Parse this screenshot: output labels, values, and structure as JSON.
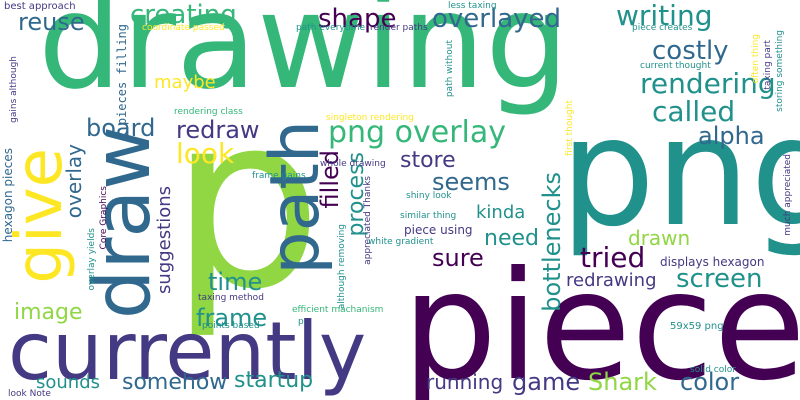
{
  "palette": {
    "background": "#ffffff",
    "dark_purple": "#440154",
    "indigo": "#443983",
    "blue": "#31688e",
    "teal": "#21918c",
    "green": "#35b779",
    "lime": "#90d743",
    "yellow": "#fde725"
  },
  "words": {
    "drawing": "drawing",
    "piece": "piece",
    "p": "p",
    "png": "png",
    "currently": "currently",
    "draw": "draw",
    "path": "path",
    "give": "give",
    "creating": "creating",
    "shape": "shape",
    "overlayed": "overlayed",
    "writing": "writing",
    "reuse": "reuse",
    "costly": "costly",
    "rendering": "rendering",
    "called": "called",
    "alpha": "alpha",
    "board": "board",
    "redraw": "redraw",
    "png_overlay": "png overlay",
    "maybe": "maybe",
    "look": "look",
    "store": "store",
    "seems": "seems",
    "filled": "filled",
    "process": "process",
    "kinda": "kinda",
    "bottlenecks": "bottlenecks",
    "need": "need",
    "drawn": "drawn",
    "tried": "tried",
    "sure": "sure",
    "screen": "screen",
    "overlay": "overlay",
    "suggestions": "suggestions",
    "image": "image",
    "time": "time",
    "frame": "frame",
    "redrawing": "redrawing",
    "startup": "startup",
    "somehow": "somehow",
    "sounds": "sounds",
    "running": "running",
    "game": "game",
    "shark": "Shark",
    "color": "color",
    "displays_hexagon": "displays hexagon",
    "pieces_filling": "pieces filling",
    "hexagon_pieces": "hexagon pieces",
    "best_approach": "best approach",
    "gains_although": "gains although",
    "coordinate_passed": "coordinate passed",
    "path_everytime": "path everytime",
    "render_paths": "render paths",
    "less_taxing": "less taxing",
    "piece_creates": "piece creates",
    "current_thought": "current thought",
    "often_thing": "often thing",
    "taxing_part": "taxing part",
    "storing_something": "storing something",
    "path_without": "path without",
    "first_thought": "first thought",
    "rendering_class": "rendering class",
    "singleton_rendering": "singleton rendering",
    "whole_drawing": "whole drawing",
    "frame_gains": "frame gains",
    "shiny_look": "shiny look",
    "similar_thing": "similar thing",
    "core_graphics": "Core Graphics",
    "appreciated_thanks": "appreciated Thanks",
    "although_removing": "although removing",
    "piece_using": "piece using",
    "white_gradient": "white gradient",
    "overlay_yields": "overlay yields",
    "taxing_method": "taxing method",
    "efficient_machanism": "efficient machanism",
    "points_based": "points based",
    "p_small": "p",
    "much_appreciated": "much appreciated",
    "png_59x59": "59x59 png",
    "solid_color": "solid color",
    "look_note": "look Note"
  }
}
